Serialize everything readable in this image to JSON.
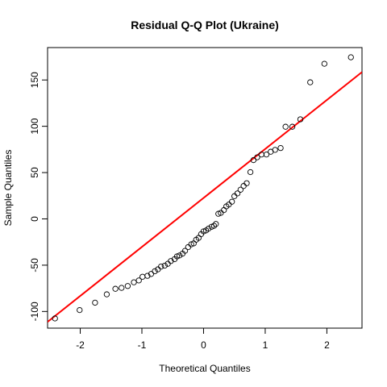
{
  "chart_data": {
    "type": "scatter",
    "title": "Residual Q-Q Plot (Ukraine)",
    "xlabel": "Theoretical Quantiles",
    "ylabel": "Sample Quantiles",
    "xlim": [
      -2.53,
      2.57
    ],
    "ylim": [
      -118,
      185
    ],
    "x_ticks": [
      -2,
      -1,
      0,
      1,
      2
    ],
    "y_ticks": [
      -100,
      -50,
      0,
      50,
      100,
      150
    ],
    "grid": false,
    "legend": "none",
    "point_style": "open-circle",
    "point_color": "#000000",
    "line_color": "#ff0000",
    "reference_line": {
      "intercept": 22.6,
      "slope": 52.9
    },
    "points": [
      [
        -2.41,
        -107.5
      ],
      [
        -2.01,
        -98.5
      ],
      [
        -1.76,
        -90.5
      ],
      [
        -1.57,
        -81.5
      ],
      [
        -1.43,
        -75.5
      ],
      [
        -1.33,
        -74.5
      ],
      [
        -1.23,
        -72.5
      ],
      [
        -1.13,
        -68.5
      ],
      [
        -1.05,
        -66.5
      ],
      [
        -0.99,
        -62.5
      ],
      [
        -0.91,
        -61.5
      ],
      [
        -0.85,
        -59.5
      ],
      [
        -0.79,
        -56.5
      ],
      [
        -0.74,
        -54.5
      ],
      [
        -0.69,
        -51.5
      ],
      [
        -0.63,
        -50.5
      ],
      [
        -0.58,
        -48.5
      ],
      [
        -0.53,
        -45.5
      ],
      [
        -0.47,
        -43.5
      ],
      [
        -0.43,
        -40.5
      ],
      [
        -0.39,
        -39.5
      ],
      [
        -0.34,
        -37.5
      ],
      [
        -0.3,
        -34.5
      ],
      [
        -0.25,
        -30.5
      ],
      [
        -0.2,
        -27.5
      ],
      [
        -0.16,
        -26.5
      ],
      [
        -0.12,
        -22.5
      ],
      [
        -0.08,
        -20.5
      ],
      [
        -0.04,
        -16.5
      ],
      [
        0.0,
        -13.5
      ],
      [
        0.04,
        -12.5
      ],
      [
        0.08,
        -10.5
      ],
      [
        0.13,
        -8.5
      ],
      [
        0.17,
        -7.5
      ],
      [
        0.2,
        -5.5
      ],
      [
        0.24,
        5.5
      ],
      [
        0.28,
        6.5
      ],
      [
        0.33,
        9.5
      ],
      [
        0.37,
        13.5
      ],
      [
        0.41,
        15.5
      ],
      [
        0.46,
        18.5
      ],
      [
        0.5,
        24.5
      ],
      [
        0.55,
        27.5
      ],
      [
        0.6,
        31.5
      ],
      [
        0.65,
        35.5
      ],
      [
        0.7,
        38.5
      ],
      [
        0.76,
        50.5
      ],
      [
        0.81,
        63.5
      ],
      [
        0.87,
        66.5
      ],
      [
        0.94,
        69.5
      ],
      [
        1.02,
        69.5
      ],
      [
        1.09,
        72.5
      ],
      [
        1.16,
        74.5
      ],
      [
        1.25,
        76.5
      ],
      [
        1.33,
        99.5
      ],
      [
        1.44,
        99.5
      ],
      [
        1.57,
        107.5
      ],
      [
        1.73,
        147.5
      ],
      [
        1.96,
        167.5
      ],
      [
        2.39,
        174.5
      ]
    ]
  }
}
